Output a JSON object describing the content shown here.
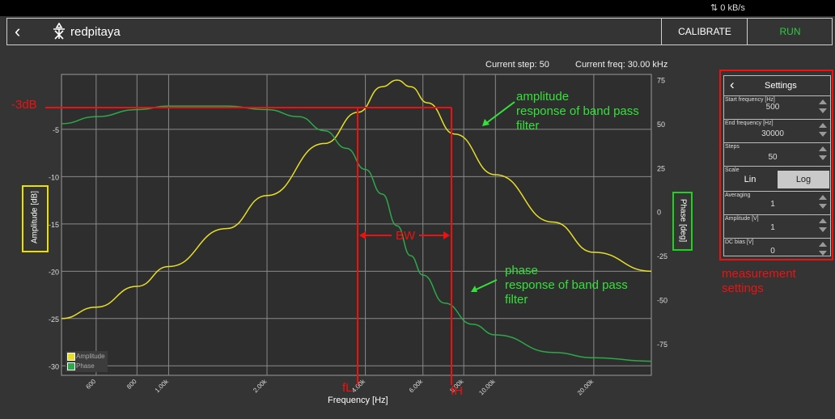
{
  "status": {
    "net_rate": "0 kB/s"
  },
  "header": {
    "logo_text": "redpitaya",
    "calibrate_label": "CALIBRATE",
    "run_label": "RUN"
  },
  "info": {
    "current_step": "Current step: 50",
    "current_freq": "Current freq: 30.00 kHz"
  },
  "plot": {
    "left_axis_label": "Amplitude [dB]",
    "right_axis_label": "Phase [deg]",
    "x_axis_label": "Frequency [Hz]",
    "legend": [
      {
        "name": "Amplitude",
        "color": "#e6de2a"
      },
      {
        "name": "Phase",
        "color": "#2da84a"
      }
    ],
    "colors": {
      "amplitude": "#e6de2a",
      "phase": "#2da84a",
      "annotation_red": "#e11",
      "annotation_green": "#35e03a"
    }
  },
  "chart_data": {
    "type": "line",
    "x_scale": "log",
    "xlabel": "Frequency [Hz]",
    "ylabel": "Amplitude [dB]",
    "y2label": "Phase [deg]",
    "xlim": [
      470,
      30000
    ],
    "ylim": [
      -31,
      0.8
    ],
    "y2lim": [
      -93,
      78
    ],
    "x_ticks": [
      "600",
      "800",
      "1.00k",
      "2.00k",
      "4.00k",
      "6.00k",
      "8.00k",
      "10.00k",
      "20.00k"
    ],
    "y_ticks": [
      "-5",
      "-10",
      "-15",
      "-20",
      "-25",
      "-30"
    ],
    "y2_ticks": [
      "75",
      "50",
      "25",
      "0",
      "-25",
      "-50",
      "-75"
    ],
    "grid": true,
    "legend_position": "bottom-left",
    "series": [
      {
        "name": "Amplitude",
        "axis": "left",
        "x": [
          470,
          600,
          800,
          1000,
          1500,
          2000,
          3000,
          3800,
          4500,
          5000,
          5500,
          6200,
          7500,
          10000,
          15000,
          20000,
          30000
        ],
        "y": [
          -25,
          -23.8,
          -21.6,
          -19.5,
          -15.5,
          -12,
          -6.5,
          -3.2,
          -0.5,
          0.2,
          -0.5,
          -2.2,
          -5.5,
          -9.8,
          -14.8,
          -18,
          -20
        ]
      },
      {
        "name": "Phase",
        "axis": "right",
        "x": [
          470,
          600,
          800,
          1000,
          1500,
          2000,
          2500,
          3000,
          3500,
          4000,
          4500,
          5000,
          5500,
          6000,
          7000,
          8500,
          10000,
          15000,
          20000,
          30000
        ],
        "y": [
          50,
          54,
          58,
          60,
          60,
          58,
          54,
          46,
          36,
          24,
          10,
          -8,
          -25,
          -36,
          -52,
          -64,
          -70,
          -80,
          -83,
          -85
        ]
      }
    ]
  },
  "annotations": {
    "minus3db": "-3dB",
    "bw": "BW",
    "fl": "fL",
    "fh": "fH",
    "amp_note": [
      "amplitude",
      "response of band pass",
      "filter"
    ],
    "phase_note": [
      "phase",
      "response of band pass",
      "filter"
    ],
    "measurement_settings": [
      "measurement",
      "settings"
    ]
  },
  "settings": {
    "title": "Settings",
    "start_freq_label": "Start frequency [Hz]",
    "start_freq": "500",
    "end_freq_label": "End frequency [Hz]",
    "end_freq": "30000",
    "steps_label": "Steps",
    "steps": "50",
    "scale_label": "Scale",
    "scale_lin": "Lin",
    "scale_log": "Log",
    "scale_selected": "Log",
    "averaging_label": "Averaging",
    "averaging": "1",
    "amplitude_label": "Amplitude [V]",
    "amplitude": "1",
    "dc_bias_label": "DC bias [V]",
    "dc_bias": "0"
  }
}
